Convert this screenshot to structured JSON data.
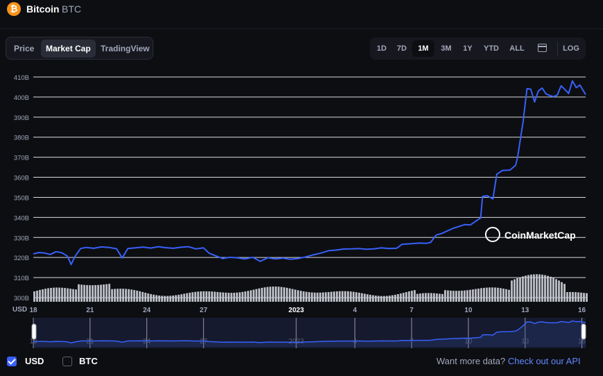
{
  "header": {
    "coin_name": "Bitcoin",
    "coin_symbol": "BTC",
    "logo_glyph": "₿",
    "logo_color": "#f7931a"
  },
  "chart_tabs": [
    {
      "label": "Price",
      "active": false
    },
    {
      "label": "Market Cap",
      "active": true
    },
    {
      "label": "TradingView",
      "active": false
    }
  ],
  "time_ranges": [
    {
      "label": "1D",
      "active": false
    },
    {
      "label": "7D",
      "active": false
    },
    {
      "label": "1M",
      "active": true
    },
    {
      "label": "3M",
      "active": false
    },
    {
      "label": "1Y",
      "active": false
    },
    {
      "label": "YTD",
      "active": false
    },
    {
      "label": "ALL",
      "active": false
    }
  ],
  "calendar_icon": "calendar-icon",
  "log_label": "LOG",
  "watermark": "CoinMarketCap",
  "footer": {
    "usd_label": "USD",
    "usd_checked": true,
    "btc_label": "BTC",
    "btc_checked": false,
    "api_prompt": "Want more data?",
    "api_link": "Check out our API"
  },
  "chart_data": {
    "type": "line",
    "title": "",
    "currency_label": "USD",
    "y_ticks": [
      "300B",
      "310B",
      "320B",
      "330B",
      "340B",
      "350B",
      "360B",
      "370B",
      "380B",
      "390B",
      "400B",
      "410B"
    ],
    "ylim": [
      300,
      410
    ],
    "x_ticks": [
      "18",
      "21",
      "24",
      "27",
      "2023",
      "4",
      "7",
      "10",
      "13",
      "16"
    ],
    "series": [
      {
        "color": "#3861fb",
        "values": [
          [
            0,
            321.8
          ],
          [
            0.3,
            322.5
          ],
          [
            0.6,
            322.2
          ],
          [
            0.9,
            321.5
          ],
          [
            1.2,
            322.9
          ],
          [
            1.5,
            322.4
          ],
          [
            1.8,
            320.7
          ],
          [
            2.0,
            316.5
          ],
          [
            2.2,
            320.5
          ],
          [
            2.5,
            324.5
          ],
          [
            2.8,
            325.0
          ],
          [
            3.2,
            324.6
          ],
          [
            3.6,
            325.3
          ],
          [
            4.0,
            325.0
          ],
          [
            4.4,
            324.4
          ],
          [
            4.7,
            319.8
          ],
          [
            5.0,
            324.5
          ],
          [
            5.4,
            324.8
          ],
          [
            5.8,
            325.2
          ],
          [
            6.2,
            324.7
          ],
          [
            6.6,
            325.4
          ],
          [
            7.0,
            324.9
          ],
          [
            7.4,
            324.6
          ],
          [
            7.8,
            325.1
          ],
          [
            8.2,
            325.4
          ],
          [
            8.6,
            324.3
          ],
          [
            9.0,
            324.8
          ],
          [
            9.3,
            322.1
          ],
          [
            9.6,
            321.0
          ],
          [
            10.0,
            319.5
          ],
          [
            10.4,
            320.1
          ],
          [
            10.8,
            319.8
          ],
          [
            11.2,
            319.3
          ],
          [
            11.6,
            320.1
          ],
          [
            12.0,
            318.1
          ],
          [
            12.4,
            319.9
          ],
          [
            12.8,
            319.3
          ],
          [
            13.2,
            319.7
          ],
          [
            13.6,
            319.1
          ],
          [
            14.0,
            319.5
          ],
          [
            14.4,
            320.3
          ],
          [
            14.8,
            321.3
          ],
          [
            15.2,
            322.2
          ],
          [
            15.6,
            323.4
          ],
          [
            16.0,
            323.7
          ],
          [
            16.4,
            324.2
          ],
          [
            16.8,
            324.3
          ],
          [
            17.2,
            324.5
          ],
          [
            17.6,
            324.1
          ],
          [
            18.0,
            324.3
          ],
          [
            18.4,
            324.8
          ],
          [
            18.8,
            324.5
          ],
          [
            19.2,
            324.6
          ],
          [
            19.5,
            326.6
          ],
          [
            20.0,
            326.9
          ],
          [
            20.4,
            327.2
          ],
          [
            20.8,
            327.1
          ],
          [
            21.0,
            327.5
          ],
          [
            21.3,
            331.2
          ],
          [
            21.6,
            332.0
          ],
          [
            21.9,
            333.3
          ],
          [
            22.2,
            334.6
          ],
          [
            22.5,
            335.5
          ],
          [
            22.8,
            336.4
          ],
          [
            23.1,
            336.2
          ],
          [
            23.5,
            338.8
          ],
          [
            23.65,
            339.7
          ],
          [
            23.75,
            350.5
          ],
          [
            24.0,
            350.8
          ],
          [
            24.3,
            349.2
          ],
          [
            24.5,
            361.5
          ],
          [
            24.8,
            363.4
          ],
          [
            25.2,
            363.6
          ],
          [
            25.5,
            366.0
          ],
          [
            25.6,
            370.0
          ],
          [
            25.7,
            376.0
          ],
          [
            25.8,
            382.0
          ],
          [
            25.9,
            388.0
          ],
          [
            26.0,
            396.5
          ],
          [
            26.1,
            404.2
          ],
          [
            26.3,
            403.9
          ],
          [
            26.5,
            397.5
          ],
          [
            26.7,
            403.0
          ],
          [
            26.9,
            404.5
          ],
          [
            27.1,
            401.6
          ],
          [
            27.3,
            400.8
          ],
          [
            27.5,
            400.2
          ],
          [
            27.7,
            401.0
          ],
          [
            27.9,
            405.6
          ],
          [
            28.1,
            403.8
          ],
          [
            28.3,
            401.8
          ],
          [
            28.5,
            408.1
          ],
          [
            28.7,
            404.7
          ],
          [
            28.9,
            406.0
          ],
          [
            29.2,
            401.2
          ]
        ]
      }
    ]
  }
}
